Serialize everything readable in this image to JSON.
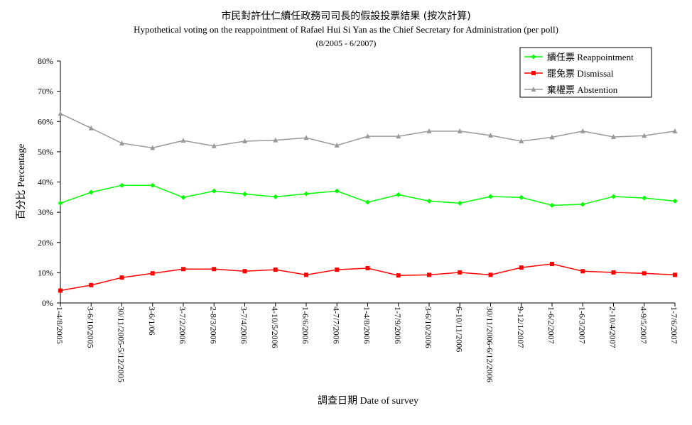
{
  "chart_data": {
    "type": "line",
    "title": "市民對許仕仁續任政務司司長的假設投票結果 (按次計算)",
    "subtitle": "Hypothetical voting on the reappointment of Rafael Hui Si Yan as the Chief Secretary for Administration (per poll)",
    "date_range": "(8/2005 - 6/2007)",
    "xlabel": "調查日期  Date of survey",
    "ylabel": "百分比  Percentage",
    "ylim": [
      0,
      80
    ],
    "yticks": [
      "0%",
      "10%",
      "20%",
      "30%",
      "40%",
      "50%",
      "60%",
      "70%",
      "80%"
    ],
    "grid": false,
    "legend_position": "top-right",
    "categories": [
      "1-4/8/2005",
      "3-6/10/2005",
      "30/11/2005-5/12/2005",
      "3-6/1/06",
      "3-7/2/2006",
      "2-8/3/2006",
      "3-7/4/2006",
      "4-10/5/2006",
      "1-6/6/2006",
      "4-7/7/2006",
      "1-4/8/2006",
      "1-7/9/2006",
      "3-6/10/2006",
      "6-10/11/2006",
      "30/11/2006-6/12/2006",
      "9-12/1/2007",
      "1-6/2/2007",
      "1-6/3/2007",
      "2-10/4/2007",
      "4-9/5/2007",
      "1-7/6/2007"
    ],
    "series": [
      {
        "name": "續任票  Reappointment",
        "color": "#00ff00",
        "marker": "diamond",
        "values": [
          33.0,
          36.6,
          38.9,
          38.9,
          34.9,
          37.0,
          36.0,
          35.1,
          36.1,
          37.0,
          33.3,
          35.8,
          33.7,
          33.0,
          35.2,
          34.9,
          32.3,
          32.6,
          35.2,
          34.7,
          33.7
        ]
      },
      {
        "name": "罷免票  Dismissal",
        "color": "#ff0000",
        "marker": "square",
        "values": [
          4.1,
          5.9,
          8.4,
          9.8,
          11.2,
          11.2,
          10.5,
          11.0,
          9.3,
          11.0,
          11.5,
          9.1,
          9.3,
          10.1,
          9.3,
          11.7,
          12.9,
          10.5,
          10.1,
          9.8,
          9.3
        ]
      },
      {
        "name": "棄權票  Abstention",
        "color": "#999999",
        "marker": "triangle",
        "values": [
          62.6,
          57.8,
          52.8,
          51.3,
          53.7,
          51.9,
          53.5,
          53.8,
          54.6,
          52.1,
          55.1,
          55.1,
          56.8,
          56.8,
          55.4,
          53.5,
          54.8,
          56.8,
          54.9,
          55.3,
          56.8
        ]
      }
    ]
  }
}
